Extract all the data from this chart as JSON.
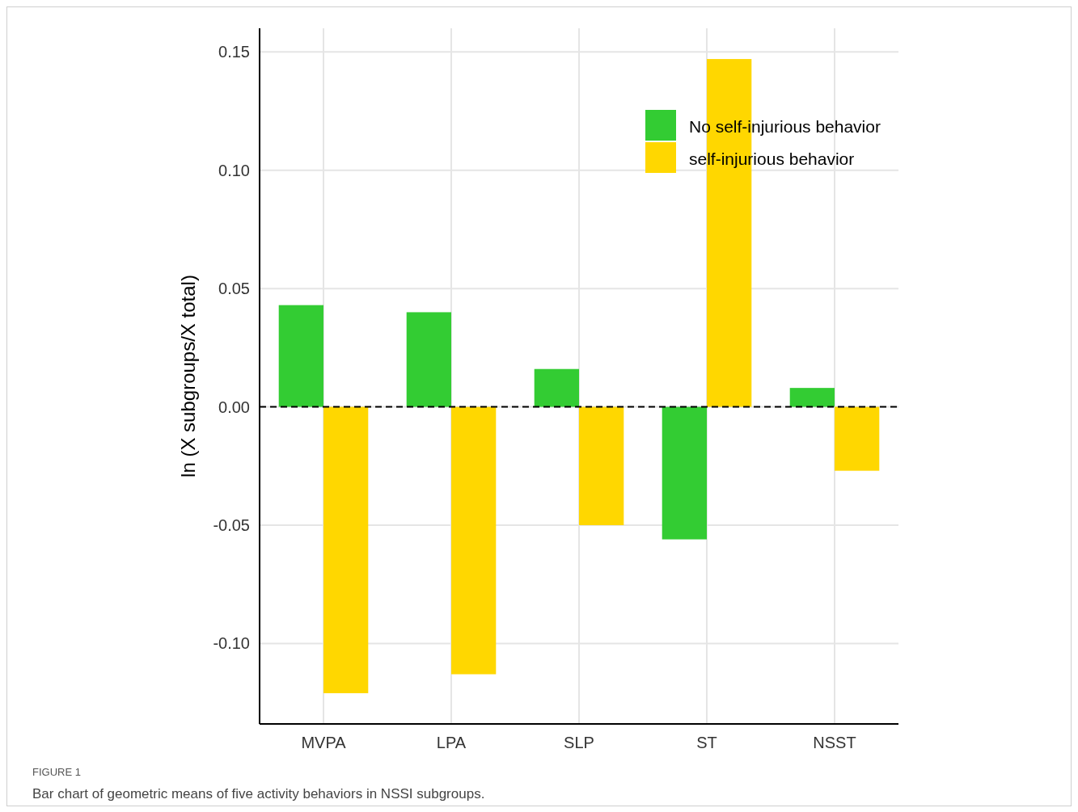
{
  "chart_data": {
    "type": "bar",
    "xlabel": null,
    "ylabel": "ln (X subgroups/X total)",
    "categories": [
      "MVPA",
      "LPA",
      "SLP",
      "ST",
      "NSST"
    ],
    "series": [
      {
        "name": "No self-injurious behavior",
        "color": "#33cc33",
        "values": [
          0.043,
          0.04,
          0.016,
          -0.056,
          0.008
        ]
      },
      {
        "name": "self-injurious behavior",
        "color": "#ffd700",
        "values": [
          -0.121,
          -0.113,
          -0.05,
          0.147,
          -0.027
        ]
      }
    ],
    "ylim": [
      -0.134,
      0.16
    ],
    "yticks": [
      {
        "value": -0.1,
        "label": "-0.10"
      },
      {
        "value": -0.05,
        "label": "-0.05"
      },
      {
        "value": 0,
        "label": "0.00"
      },
      {
        "value": 0.05,
        "label": "0.05"
      },
      {
        "value": 0.1,
        "label": "0.10"
      },
      {
        "value": 0.15,
        "label": "0.15"
      }
    ],
    "grid": true,
    "legend": "top right",
    "ref_lines": [
      {
        "axis": "y",
        "value": 0,
        "color": "#000000",
        "line_style": "dashed"
      }
    ],
    "annotations": [
      "FIGURE 1",
      "Bar chart of geometric means of five activity behaviors in NSSI subgroups."
    ]
  }
}
